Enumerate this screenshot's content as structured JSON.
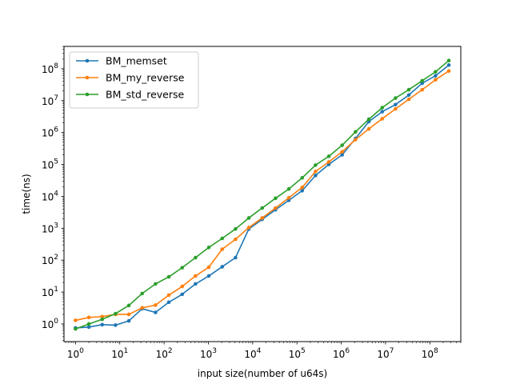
{
  "chart_data": {
    "type": "line",
    "title": "",
    "xlabel": "input size(number of u64s)",
    "ylabel": "time(ns)",
    "xscale": "log",
    "yscale": "log",
    "xlim": [
      0.55,
      500000000
    ],
    "ylim": [
      0.28,
      500000000
    ],
    "grid": false,
    "legend_position": "top-left",
    "x": [
      1,
      2,
      4,
      8,
      16,
      32,
      64,
      128,
      256,
      512,
      1024,
      2048,
      4096,
      8192,
      16384,
      32768,
      65536,
      131072,
      262144,
      524288,
      1048576,
      2097152,
      4194304,
      8388608,
      16777216,
      33554432,
      67108864,
      134217728,
      268435456
    ],
    "series": [
      {
        "name": "BM_memset",
        "color": "#1f77b4",
        "values": [
          0.75,
          0.8,
          0.95,
          0.92,
          1.25,
          3.0,
          2.3,
          4.8,
          8.5,
          18,
          32,
          62,
          120,
          950,
          1900,
          3800,
          7500,
          15000,
          45000,
          100000,
          200000,
          650000,
          2200000,
          4500000,
          7500000,
          15000000,
          35000000,
          60000000,
          130000000
        ]
      },
      {
        "name": "BM_my_reverse",
        "color": "#ff7f0e",
        "values": [
          1.3,
          1.6,
          1.7,
          2.0,
          2.0,
          3.2,
          3.9,
          8,
          15,
          32,
          60,
          220,
          450,
          1050,
          2100,
          4300,
          9000,
          19000,
          60000,
          120000,
          250000,
          600000,
          1300000,
          2700000,
          5500000,
          11000000,
          22000000,
          45000000,
          85000000
        ]
      },
      {
        "name": "BM_std_reverse",
        "color": "#2ca02c",
        "values": [
          0.7,
          1.0,
          1.4,
          2.1,
          3.8,
          9,
          18,
          30,
          58,
          120,
          250,
          480,
          950,
          2100,
          4300,
          8700,
          17000,
          38000,
          95000,
          180000,
          400000,
          1050000,
          2600000,
          6000000,
          12000000,
          22000000,
          42000000,
          80000000,
          180000000
        ]
      }
    ],
    "x_ticks": [
      {
        "base": "10",
        "exp": "0"
      },
      {
        "base": "10",
        "exp": "1"
      },
      {
        "base": "10",
        "exp": "2"
      },
      {
        "base": "10",
        "exp": "3"
      },
      {
        "base": "10",
        "exp": "4"
      },
      {
        "base": "10",
        "exp": "5"
      },
      {
        "base": "10",
        "exp": "6"
      },
      {
        "base": "10",
        "exp": "7"
      },
      {
        "base": "10",
        "exp": "8"
      }
    ],
    "y_ticks": [
      {
        "base": "10",
        "exp": "0"
      },
      {
        "base": "10",
        "exp": "1"
      },
      {
        "base": "10",
        "exp": "2"
      },
      {
        "base": "10",
        "exp": "3"
      },
      {
        "base": "10",
        "exp": "4"
      },
      {
        "base": "10",
        "exp": "5"
      },
      {
        "base": "10",
        "exp": "6"
      },
      {
        "base": "10",
        "exp": "7"
      },
      {
        "base": "10",
        "exp": "8"
      }
    ]
  }
}
